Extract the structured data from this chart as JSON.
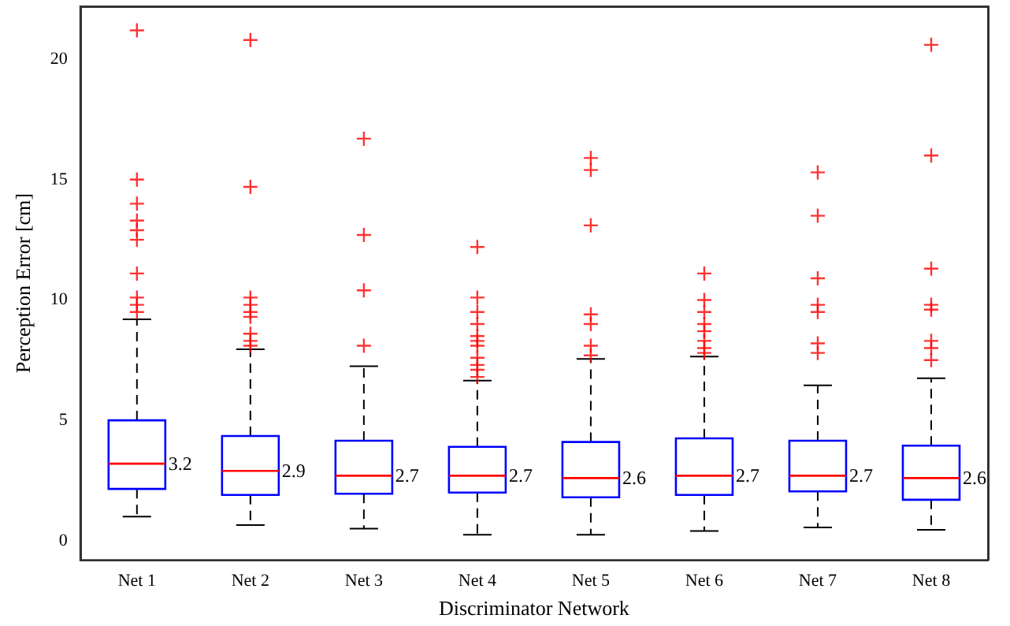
{
  "chart_data": {
    "type": "box",
    "xlabel": "Discriminator Network",
    "ylabel": "Perception Error [cm]",
    "categories": [
      "Net 1",
      "Net 2",
      "Net 3",
      "Net 4",
      "Net 5",
      "Net 6",
      "Net 7",
      "Net 8"
    ],
    "color": "#0000ff",
    "boxes": [
      {
        "low": 1.0,
        "q1": 2.15,
        "median": 3.2,
        "q3": 5.0,
        "high": 9.2,
        "outliers": [
          21.2,
          15.0,
          14.0,
          13.3,
          12.9,
          12.5,
          11.1,
          10.1,
          9.8,
          9.5
        ]
      },
      {
        "low": 0.65,
        "q1": 1.9,
        "median": 2.9,
        "q3": 4.35,
        "high": 7.95,
        "outliers": [
          20.8,
          14.7,
          10.1,
          9.8,
          9.5,
          9.3,
          8.6,
          8.3,
          8.1
        ]
      },
      {
        "low": 0.5,
        "q1": 1.95,
        "median": 2.7,
        "q3": 4.15,
        "high": 7.25,
        "outliers": [
          16.7,
          12.7,
          10.4,
          8.1
        ]
      },
      {
        "low": 0.25,
        "q1": 2.0,
        "median": 2.7,
        "q3": 3.9,
        "high": 6.65,
        "outliers": [
          12.2,
          10.1,
          9.5,
          9.0,
          8.5,
          8.3,
          8.1,
          7.6,
          7.3,
          7.1,
          6.8
        ]
      },
      {
        "low": 0.25,
        "q1": 1.8,
        "median": 2.6,
        "q3": 4.1,
        "high": 7.55,
        "outliers": [
          15.9,
          15.4,
          13.1,
          9.4,
          9.0,
          8.1,
          7.7
        ]
      },
      {
        "low": 0.4,
        "q1": 1.9,
        "median": 2.7,
        "q3": 4.25,
        "high": 7.65,
        "outliers": [
          11.1,
          10.0,
          9.5,
          9.0,
          8.7,
          8.3,
          8.0,
          7.8
        ]
      },
      {
        "low": 0.55,
        "q1": 2.05,
        "median": 2.7,
        "q3": 4.15,
        "high": 6.45,
        "outliers": [
          15.3,
          13.5,
          10.9,
          9.8,
          9.5,
          8.2,
          7.8
        ]
      },
      {
        "low": 0.45,
        "q1": 1.7,
        "median": 2.6,
        "q3": 3.95,
        "high": 6.75,
        "outliers": [
          20.6,
          16.0,
          11.3,
          9.8,
          9.6,
          8.3,
          8.0,
          7.5
        ]
      }
    ],
    "annotations": [
      {
        "text": "3.2",
        "x": "Net 1",
        "y": 3.2
      },
      {
        "text": "2.9",
        "x": "Net 2",
        "y": 2.9
      },
      {
        "text": "2.7",
        "x": "Net 3",
        "y": 2.7
      },
      {
        "text": "2.7",
        "x": "Net 4",
        "y": 2.7
      },
      {
        "text": "2.6",
        "x": "Net 5",
        "y": 2.6
      },
      {
        "text": "2.7",
        "x": "Net 6",
        "y": 2.7
      },
      {
        "text": "2.7",
        "x": "Net 7",
        "y": 2.7
      },
      {
        "text": "2.6",
        "x": "Net 8",
        "y": 2.6
      }
    ],
    "ylim": [
      -0.8,
      22.2
    ],
    "yticks": [
      0,
      5,
      10,
      15,
      20
    ],
    "grid": false
  }
}
